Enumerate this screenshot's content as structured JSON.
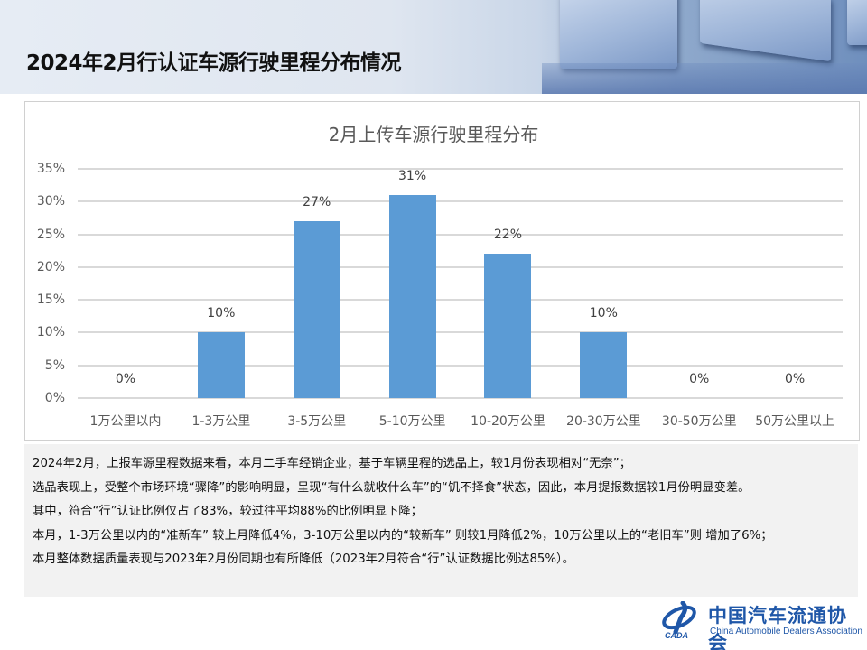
{
  "header": {
    "title": "2024年2月行认证车源行驶里程分布情况"
  },
  "chart_data": {
    "type": "bar",
    "title": "2月上传车源行驶里程分布",
    "categories": [
      "1万公里以内",
      "1-3万公里",
      "3-5万公里",
      "5-10万公里",
      "10-20万公里",
      "20-30万公里",
      "30-50万公里",
      "50万公里以上"
    ],
    "values": [
      0,
      10,
      27,
      31,
      22,
      10,
      0,
      0
    ],
    "value_labels": [
      "0%",
      "10%",
      "27%",
      "31%",
      "22%",
      "10%",
      "0%",
      "0%"
    ],
    "unit": "%",
    "xlabel": "",
    "ylabel": "",
    "ylim": [
      0,
      35
    ],
    "yticks": [
      "0%",
      "5%",
      "10%",
      "15%",
      "20%",
      "25%",
      "30%",
      "35%"
    ],
    "grid": true,
    "legend": "none",
    "bar_color": "#5b9bd5"
  },
  "notes": {
    "lines": [
      "2024年2月，上报车源里程数据来看，本月二手车经销企业，基于车辆里程的选品上，较1月份表现相对“无奈”；",
      "选品表现上，受整个市场环境“骤降”的影响明显，呈现“有什么就收什么车”的“饥不择食”状态，因此，本月提报数据较1月份明显变差。",
      "其中，符合“行”认证比例仅占了83%，较过往平均88%的比例明显下降；",
      "本月，1-3万公里以内的“准新车” 较上月降低4%，3-10万公里以内的“较新车” 则较1月降低2%，10万公里以上的“老旧车”则 增加了6%；",
      "本月整体数据质量表现与2023年2月份同期也有所降低（2023年2月符合“行”认证数据比例达85%）。"
    ]
  },
  "logo": {
    "cn": "中国汽车流通协会",
    "en": "China Automobile Dealers Association",
    "mark_text": "CADA"
  }
}
